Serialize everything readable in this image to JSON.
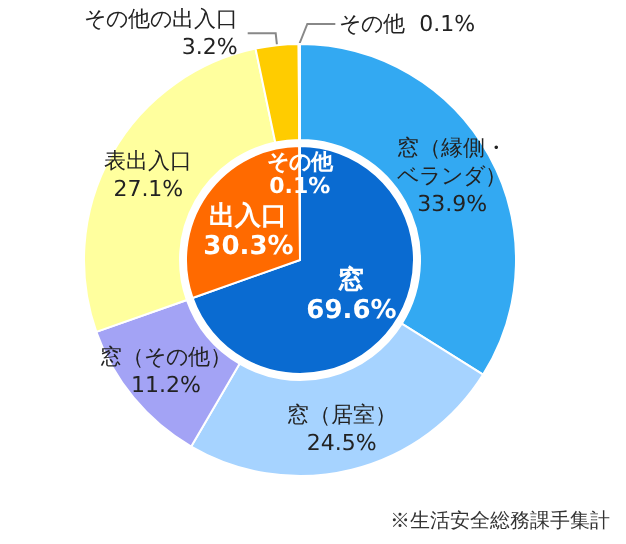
{
  "chart_data": [
    {
      "type": "donut",
      "categories": [
        "窓（縁側・ベランダ）",
        "窓（居室）",
        "窓（その他）",
        "表出入口",
        "その他の出入口",
        "その他"
      ],
      "values": [
        33.9,
        24.5,
        11.2,
        27.1,
        3.2,
        0.1
      ],
      "value_labels": [
        "33.9%",
        "24.5%",
        "11.2%",
        "27.1%",
        "3.2%",
        "0.1%"
      ],
      "colors": [
        "#33a9f2",
        "#a6d3ff",
        "#a3a3f5",
        "#ffff9e",
        "#ffcc00",
        "#ff9933"
      ],
      "annotations": [
        "※生活安全総務課手集計"
      ]
    },
    {
      "type": "pie",
      "categories": [
        "窓",
        "出入口",
        "その他"
      ],
      "values": [
        69.6,
        30.3,
        0.1
      ],
      "value_labels": [
        "69.6%",
        "30.3%",
        "0.1%"
      ],
      "colors": [
        "#0a6bd1",
        "#ff6a00",
        "#cc3300"
      ]
    }
  ]
}
